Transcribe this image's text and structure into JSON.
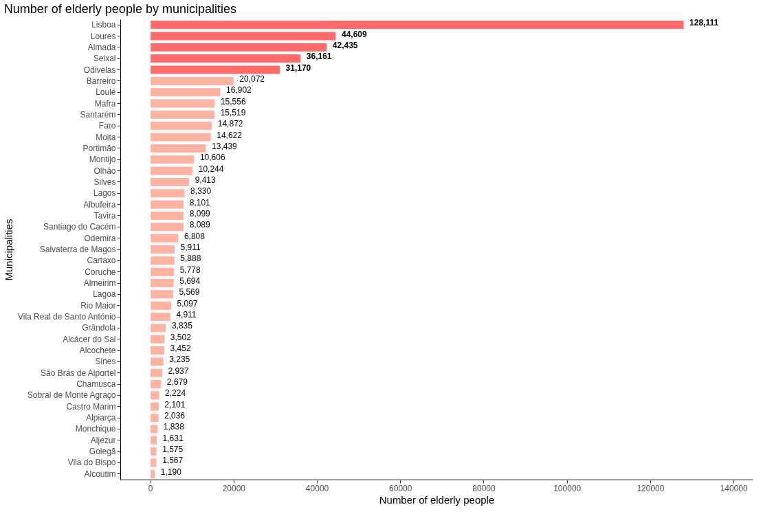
{
  "chart_data": {
    "type": "bar",
    "orientation": "horizontal",
    "title": "Number of elderly people by municipalities",
    "xlabel": "Number of elderly people",
    "ylabel": "Municipalities",
    "categories": [
      "Lisboa",
      "Loures",
      "Almada",
      "Seixal",
      "Odivelas",
      "Barreiro",
      "Loulé",
      "Mafra",
      "Santarém",
      "Faro",
      "Moita",
      "Portimão",
      "Montijo",
      "Olhão",
      "Silves",
      "Lagos",
      "Albufeira",
      "Tavira",
      "Santiago do Cacém",
      "Odemira",
      "Salvaterra de Magos",
      "Cartaxo",
      "Coruche",
      "Almeirim",
      "Lagoa",
      "Rio Maior",
      "Vila Real de Santo António",
      "Grândola",
      "Alcácer do Sal",
      "Alcochete",
      "Sines",
      "São Brás de Alportel",
      "Chamusca",
      "Sobral de Monte Agraço",
      "Castro Marim",
      "Alpiarça",
      "Monchique",
      "Aljezur",
      "Golegã",
      "Vila do Bispo",
      "Alcoutim"
    ],
    "values": [
      128111,
      44609,
      42435,
      36161,
      31170,
      20072,
      16902,
      15556,
      15519,
      14872,
      14622,
      13439,
      10606,
      10244,
      9413,
      8330,
      8101,
      8099,
      8089,
      6808,
      5911,
      5888,
      5778,
      5694,
      5569,
      5097,
      4911,
      3835,
      3502,
      3452,
      3235,
      2937,
      2679,
      2224,
      2101,
      2036,
      1838,
      1631,
      1575,
      1567,
      1190
    ],
    "value_labels": [
      "128,111",
      "44,609",
      "42,435",
      "36,161",
      "31,170",
      "20,072",
      "16,902",
      "15,556",
      "15,519",
      "14,872",
      "14,622",
      "13,439",
      "10,606",
      "10,244",
      "9,413",
      "8,330",
      "8,101",
      "8,099",
      "8,089",
      "6,808",
      "5,911",
      "5,888",
      "5,778",
      "5,694",
      "5,569",
      "5,097",
      "4,911",
      "3,835",
      "3,502",
      "3,452",
      "3,235",
      "2,937",
      "2,679",
      "2,224",
      "2,101",
      "2,036",
      "1,838",
      "1,631",
      "1,575",
      "1,567",
      "1,190"
    ],
    "colors": [
      "#ff6b6b",
      "#ff6b6b",
      "#ff6b6b",
      "#ff6b6b",
      "#ff6b6b",
      "#ffb3a0",
      "#ffb3a0",
      "#ffb3a0",
      "#ffb3a0",
      "#ffb3a0",
      "#ffb3a0",
      "#ffb3a0",
      "#ffb3a0",
      "#ffb3a0",
      "#ffb3a0",
      "#ffb3a0",
      "#ffb3a0",
      "#ffb3a0",
      "#ffb3a0",
      "#ffb3a0",
      "#ffb3a0",
      "#ffb3a0",
      "#ffb3a0",
      "#ffb3a0",
      "#ffb3a0",
      "#ffb3a0",
      "#ffb3a0",
      "#ffb3a0",
      "#ffb3a0",
      "#ffb3a0",
      "#ffb3a0",
      "#ffb3a0",
      "#ffb3a0",
      "#ffb3a0",
      "#ffb3a0",
      "#ffb3a0",
      "#ffb3a0",
      "#ffb3a0",
      "#ffb3a0",
      "#ffb3a0",
      "#ffb3a0"
    ],
    "xlim": [
      -7200,
      144600
    ],
    "xticks": [
      0,
      20000,
      40000,
      60000,
      80000,
      100000,
      120000,
      140000
    ],
    "grid": false
  }
}
